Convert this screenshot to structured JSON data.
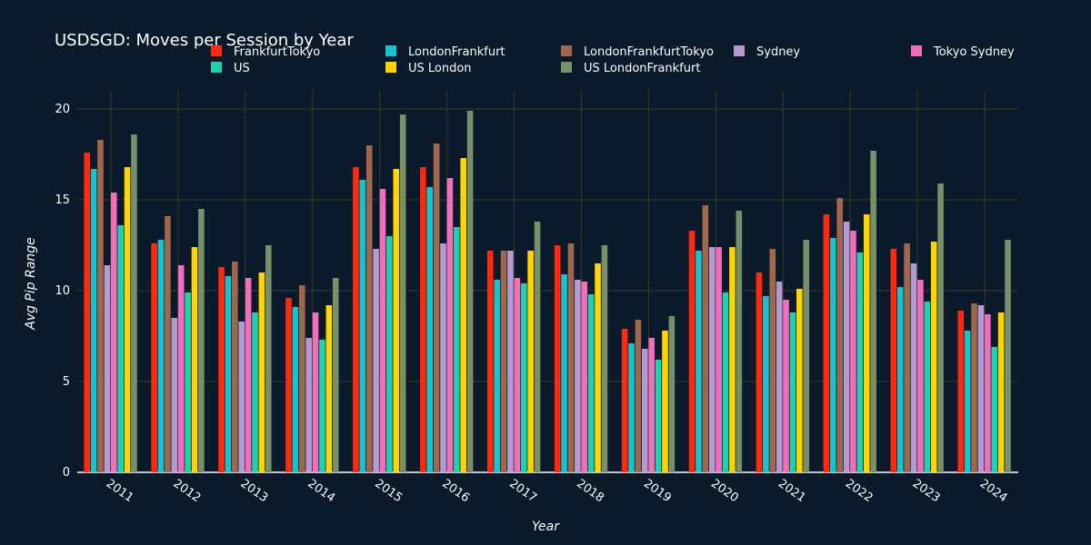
{
  "chart_data": {
    "type": "bar",
    "title": "USDSGD: Moves per Session by Year",
    "xlabel": "Year",
    "ylabel": "Avg Pip Range",
    "ylim": [
      0,
      21
    ],
    "yticks": [
      0,
      5,
      10,
      15,
      20
    ],
    "grid": true,
    "legend_position": "top",
    "categories": [
      "2011",
      "2012",
      "2013",
      "2014",
      "2015",
      "2016",
      "2017",
      "2018",
      "2019",
      "2020",
      "2021",
      "2022",
      "2023",
      "2024"
    ],
    "series": [
      {
        "name": "FrankfurtTokyo",
        "color": "#ff2a0e",
        "values": [
          17.6,
          12.6,
          11.3,
          9.6,
          16.8,
          16.8,
          12.2,
          12.5,
          7.9,
          13.3,
          11.0,
          14.2,
          12.3,
          8.9
        ]
      },
      {
        "name": "LondonFrankfurt",
        "color": "#17c3cf",
        "values": [
          16.7,
          12.8,
          10.8,
          9.1,
          16.1,
          15.7,
          10.6,
          10.9,
          7.1,
          12.2,
          9.7,
          12.9,
          10.2,
          7.8
        ]
      },
      {
        "name": "LondonFrankfurtTokyo",
        "color": "#a0674a",
        "values": [
          18.3,
          14.1,
          11.6,
          10.3,
          18.0,
          18.1,
          12.2,
          12.6,
          8.4,
          14.7,
          12.3,
          15.1,
          12.6,
          9.3
        ]
      },
      {
        "name": "Sydney",
        "color": "#b49ad4",
        "values": [
          11.4,
          8.5,
          8.3,
          7.4,
          12.3,
          12.6,
          12.2,
          10.6,
          6.8,
          12.4,
          10.5,
          13.8,
          11.5,
          9.2
        ]
      },
      {
        "name": "Tokyo Sydney",
        "color": "#f06fb8",
        "values": [
          15.4,
          11.4,
          10.7,
          8.8,
          15.6,
          16.2,
          10.7,
          10.5,
          7.4,
          12.4,
          9.5,
          13.3,
          10.6,
          8.7
        ]
      },
      {
        "name": "US",
        "color": "#1fd1b0",
        "values": [
          13.6,
          9.9,
          8.8,
          7.3,
          13.0,
          13.5,
          10.4,
          9.8,
          6.2,
          9.9,
          8.8,
          12.1,
          9.4,
          6.9
        ]
      },
      {
        "name": "US London",
        "color": "#ffd500",
        "values": [
          16.8,
          12.4,
          11.0,
          9.2,
          16.7,
          17.3,
          12.2,
          11.5,
          7.8,
          12.4,
          10.1,
          14.2,
          12.7,
          8.8
        ]
      },
      {
        "name": "US LondonFrankfurt",
        "color": "#77906a",
        "values": [
          18.6,
          14.5,
          12.5,
          10.7,
          19.7,
          19.9,
          13.8,
          12.5,
          8.6,
          14.4,
          12.8,
          17.7,
          15.9,
          12.8
        ]
      }
    ]
  }
}
